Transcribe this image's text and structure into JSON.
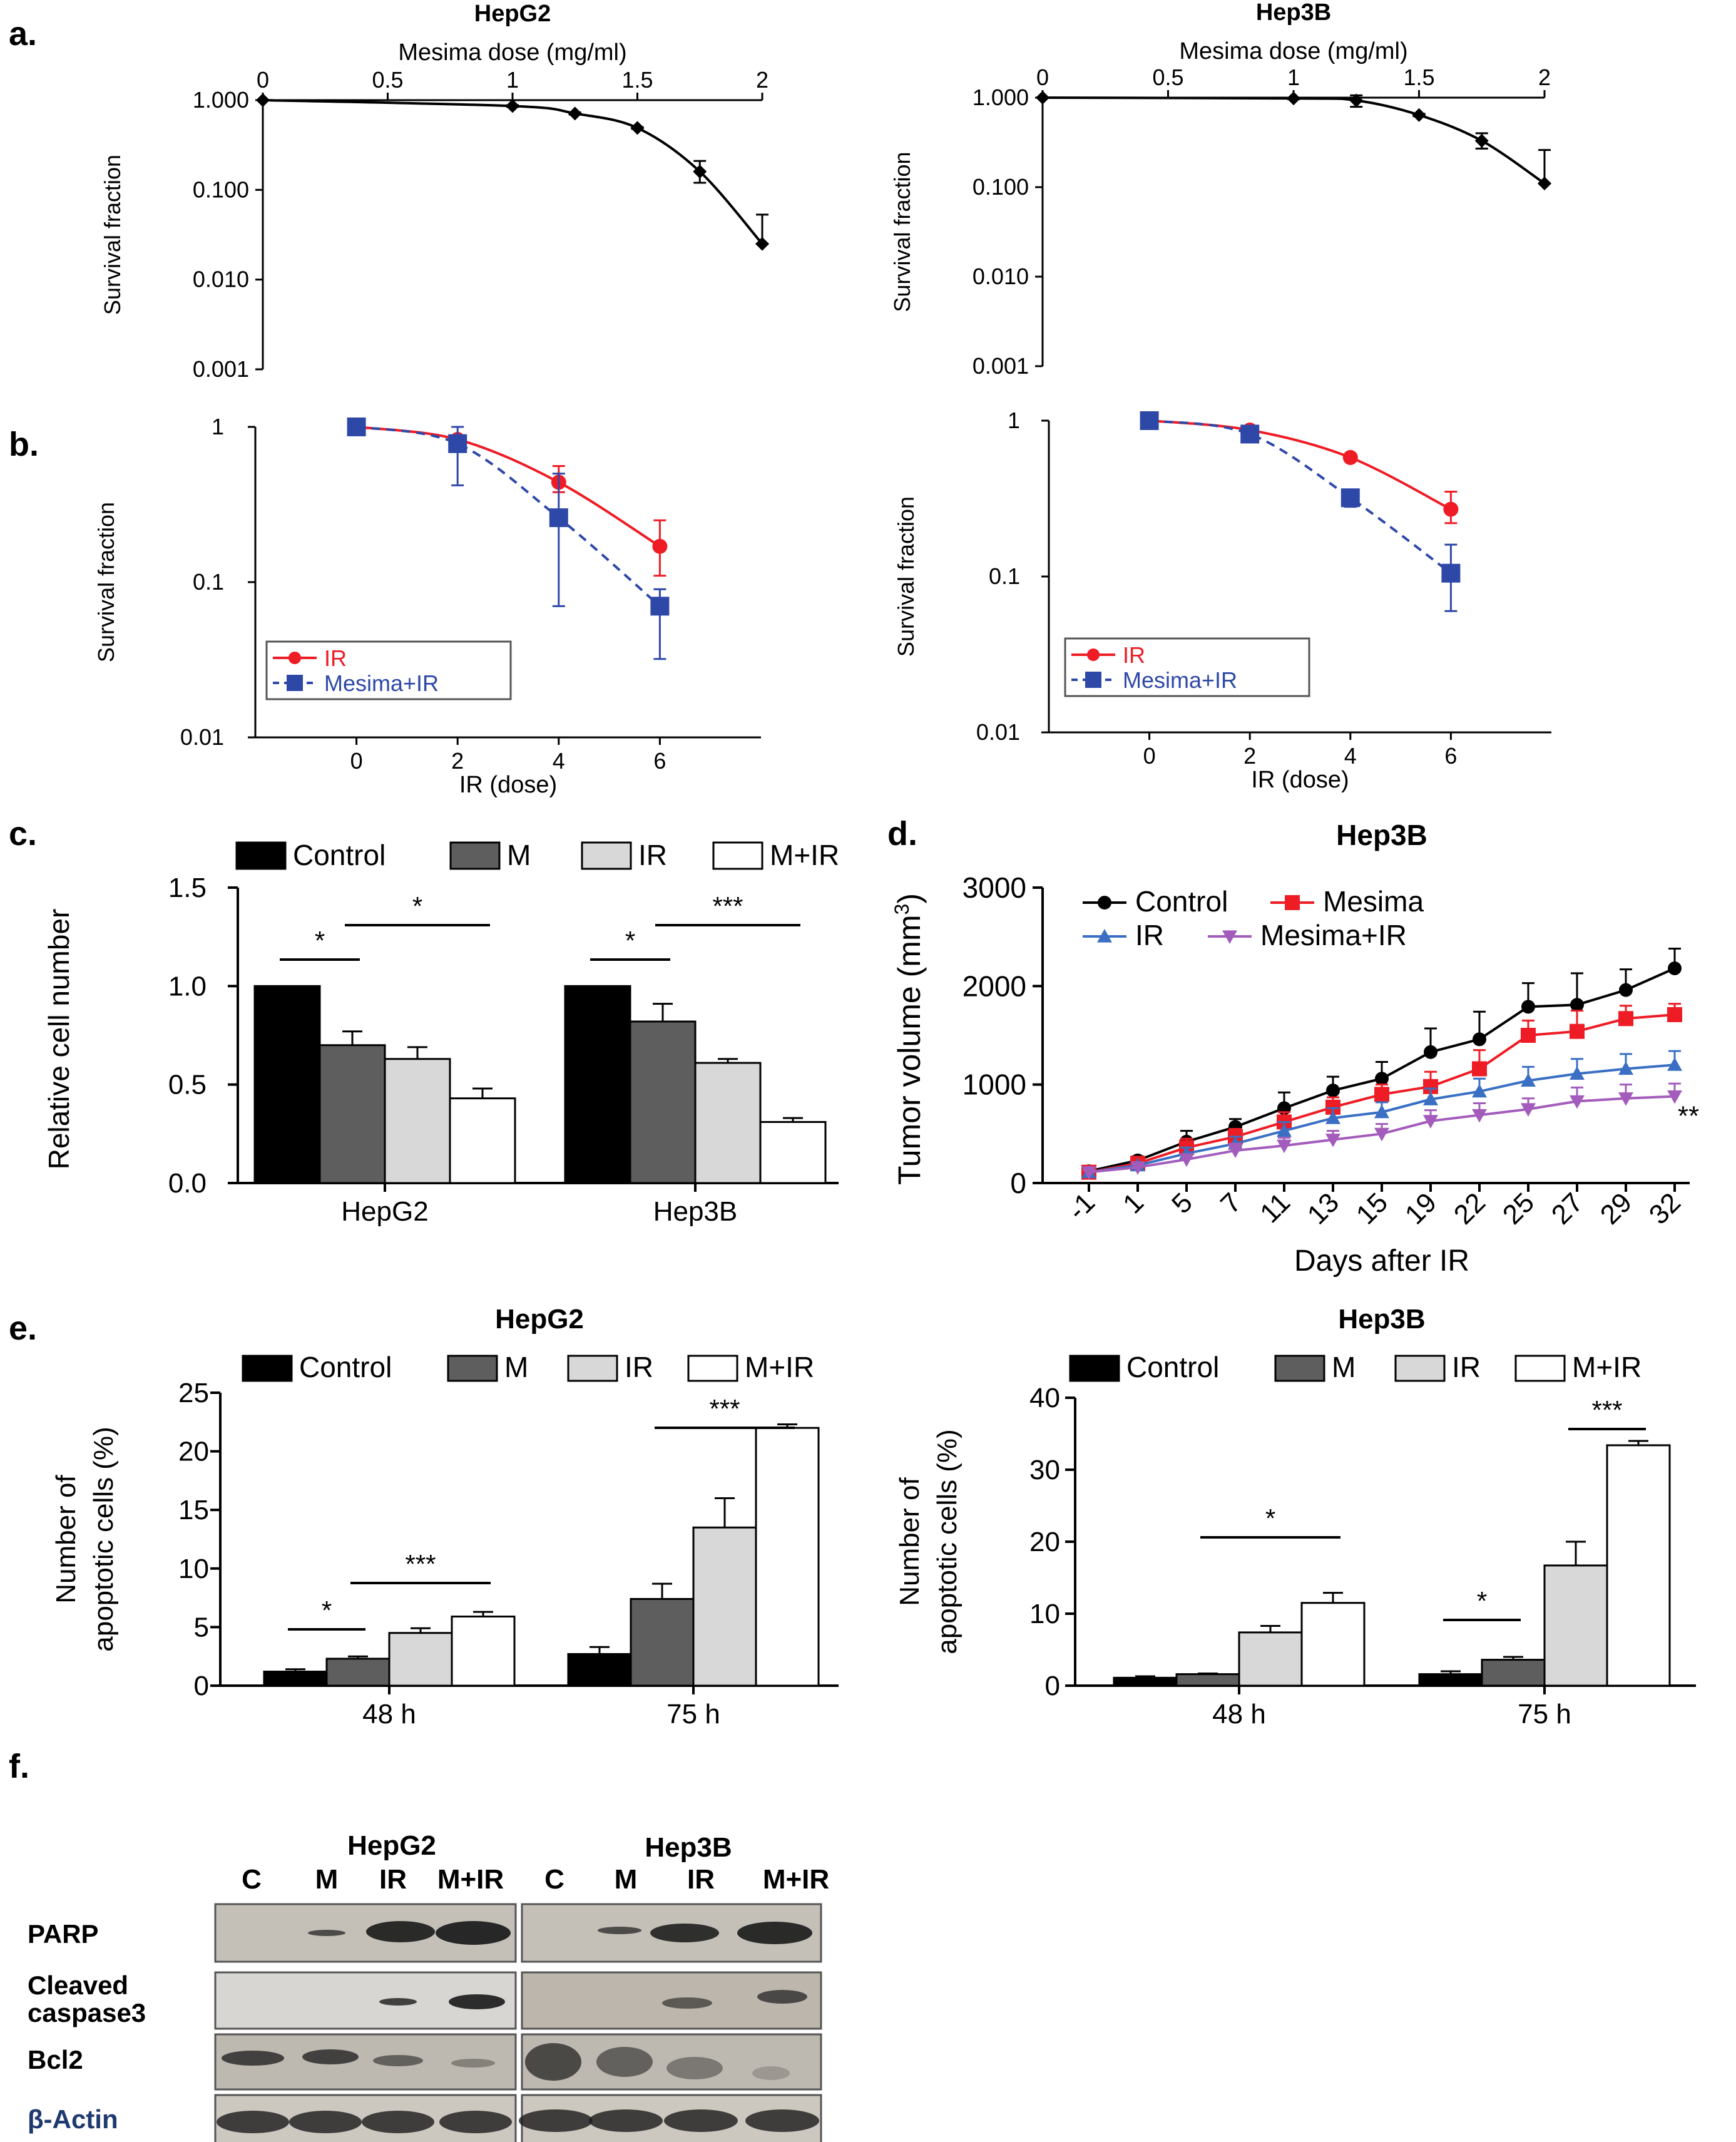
{
  "panel_labels": {
    "a": "a.",
    "b": "b.",
    "c": "c.",
    "d": "d.",
    "e": "e.",
    "f": "f."
  },
  "colors": {
    "black": "#000000",
    "ir_red": "#ee1c25",
    "mesima_blue": "#2e48a8",
    "dark_gray": "#5e5e5e",
    "light_gray": "#d8d8d8",
    "white": "#ffffff",
    "control_black": "#000000",
    "mesima_red": "#ee1c25",
    "ir_blue": "#3a6fc4",
    "combo_purple": "#a35cbb",
    "blot_label_navy": "#1f3a6e"
  },
  "chart_data": [
    {
      "id": "a_hepg2",
      "type": "line",
      "title": "HepG2",
      "xlabel": "Mesima dose (mg/ml)",
      "ylabel": "Survival fraction",
      "yscale": "log",
      "xlim": [
        0,
        2
      ],
      "xticks": [
        0,
        0.5,
        1,
        1.5,
        2
      ],
      "xtick_labels": [
        "0",
        "0.5",
        "1",
        "1.5",
        "2"
      ],
      "ylim": [
        0.001,
        1
      ],
      "yticks": [
        1,
        0.1,
        0.01,
        0.001
      ],
      "ytick_labels": [
        "1.000",
        "0.100",
        "0.010",
        "0.001"
      ],
      "series": [
        {
          "name": "HepG2",
          "x": [
            0,
            1,
            1.25,
            1.5,
            1.75,
            2
          ],
          "y": [
            1.0,
            0.86,
            0.71,
            0.49,
            0.16,
            0.025
          ],
          "err_hi": [
            1.0,
            0.88,
            0.73,
            0.5,
            0.21,
            0.053
          ],
          "err_lo": [
            1.0,
            0.84,
            0.69,
            0.48,
            0.12,
            0.025
          ]
        }
      ]
    },
    {
      "id": "a_hep3b",
      "type": "line",
      "title": "Hep3B",
      "xlabel": "Mesima dose (mg/ml)",
      "ylabel": "Survival fraction",
      "yscale": "log",
      "xlim": [
        0,
        2
      ],
      "xticks": [
        0,
        0.5,
        1,
        1.5,
        2
      ],
      "xtick_labels": [
        "0",
        "0.5",
        "1",
        "1.5",
        "2"
      ],
      "ylim": [
        0.001,
        1
      ],
      "yticks": [
        1,
        0.1,
        0.01,
        0.001
      ],
      "ytick_labels": [
        "1.000",
        "0.100",
        "0.010",
        "0.001"
      ],
      "series": [
        {
          "name": "Hep3B",
          "x": [
            0,
            1,
            1.25,
            1.5,
            1.75,
            2
          ],
          "y": [
            1.0,
            0.98,
            0.93,
            0.64,
            0.33,
            0.11
          ],
          "err_hi": [
            1.0,
            1.0,
            1.06,
            0.66,
            0.4,
            0.26
          ],
          "err_lo": [
            1.0,
            0.96,
            0.79,
            0.62,
            0.27,
            0.11
          ]
        }
      ]
    },
    {
      "id": "b_hepg2",
      "type": "line",
      "xlabel": "IR (dose)",
      "ylabel": "Survival fraction",
      "yscale": "log",
      "xlim": [
        -2,
        8
      ],
      "xticks": [
        0,
        2,
        4,
        6
      ],
      "xtick_labels": [
        "0",
        "2",
        "4",
        "6"
      ],
      "ylim": [
        0.01,
        1
      ],
      "yticks": [
        1,
        0.1,
        0.01
      ],
      "ytick_labels": [
        "1",
        "0.1",
        "0.01"
      ],
      "legend": [
        "IR",
        "Mesima+IR"
      ],
      "series": [
        {
          "name": "IR",
          "x": [
            0,
            2,
            4,
            6
          ],
          "y": [
            1.0,
            0.83,
            0.44,
            0.17
          ],
          "err_hi": [
            1.0,
            0.88,
            0.56,
            0.25
          ],
          "err_lo": [
            1.0,
            0.78,
            0.38,
            0.11
          ]
        },
        {
          "name": "Mesima+IR",
          "x": [
            0,
            2,
            4,
            6
          ],
          "y": [
            1.0,
            0.78,
            0.26,
            0.07
          ],
          "err_hi": [
            1.0,
            1.0,
            0.5,
            0.09
          ],
          "err_lo": [
            1.0,
            0.42,
            0.07,
            0.032
          ]
        }
      ]
    },
    {
      "id": "b_hep3b",
      "type": "line",
      "xlabel": "IR (dose)",
      "ylabel": "Survival fraction",
      "yscale": "log",
      "xlim": [
        -2,
        8
      ],
      "xticks": [
        0,
        2,
        4,
        6
      ],
      "xtick_labels": [
        "0",
        "2",
        "4",
        "6"
      ],
      "ylim": [
        0.01,
        1
      ],
      "yticks": [
        1,
        0.1,
        0.01
      ],
      "ytick_labels": [
        "1",
        "0.1",
        "0.01"
      ],
      "legend": [
        "IR",
        "Mesima+IR"
      ],
      "series": [
        {
          "name": "IR",
          "x": [
            0,
            2,
            4,
            6
          ],
          "y": [
            1.0,
            0.87,
            0.58,
            0.27
          ],
          "err_hi": [
            1.0,
            0.9,
            0.6,
            0.35
          ],
          "err_lo": [
            1.0,
            0.84,
            0.56,
            0.22
          ]
        },
        {
          "name": "Mesima+IR",
          "x": [
            0,
            2,
            4,
            6
          ],
          "y": [
            1.0,
            0.82,
            0.32,
            0.105
          ],
          "err_hi": [
            1.0,
            0.88,
            0.36,
            0.16
          ],
          "err_lo": [
            1.0,
            0.76,
            0.28,
            0.06
          ]
        }
      ]
    },
    {
      "id": "c",
      "type": "bar",
      "ylabel": "Relative cell number",
      "ylim": [
        0,
        1.5
      ],
      "yticks": [
        0,
        0.5,
        1.0,
        1.5
      ],
      "ytick_labels": [
        "0.0",
        "0.5",
        "1.0",
        "1.5"
      ],
      "categories": [
        "HepG2",
        "Hep3B"
      ],
      "legend": [
        "Control",
        "M",
        "IR",
        "M+IR"
      ],
      "series": [
        {
          "name": "Control",
          "values": [
            1.0,
            1.0
          ],
          "err": [
            0,
            0
          ]
        },
        {
          "name": "M",
          "values": [
            0.7,
            0.82
          ],
          "err": [
            0.07,
            0.09
          ]
        },
        {
          "name": "IR",
          "values": [
            0.63,
            0.61
          ],
          "err": [
            0.06,
            0.02
          ]
        },
        {
          "name": "M+IR",
          "values": [
            0.43,
            0.31
          ],
          "err": [
            0.05,
            0.02
          ]
        }
      ],
      "significance": [
        {
          "group": 0,
          "from": 0,
          "to": 1,
          "label": "*"
        },
        {
          "group": 0,
          "from": 1,
          "to": 3,
          "label": "*"
        },
        {
          "group": 1,
          "from": 0,
          "to": 1,
          "label": "*"
        },
        {
          "group": 1,
          "from": 1,
          "to": 3,
          "label": "***"
        }
      ]
    },
    {
      "id": "d",
      "type": "line",
      "title": "Hep3B",
      "xlabel": "Days after IR",
      "ylabel_main": "Tumor volume (mm",
      "ylabel_sup": "3",
      "ylabel_end": ")",
      "ylim": [
        0,
        3000
      ],
      "yticks": [
        0,
        1000,
        2000,
        3000
      ],
      "ytick_labels": [
        "0",
        "1000",
        "2000",
        "3000"
      ],
      "categories": [
        "-1",
        "1",
        "5",
        "7",
        "11",
        "13",
        "15",
        "19",
        "22",
        "25",
        "27",
        "29",
        "32"
      ],
      "annotation": "**",
      "legend": [
        "Control",
        "Mesima",
        "IR",
        "Mesima+IR"
      ],
      "series": [
        {
          "name": "Control",
          "values": [
            120,
            230,
            420,
            570,
            760,
            940,
            1060,
            1330,
            1460,
            1790,
            1810,
            1960,
            2180
          ],
          "err": [
            20,
            40,
            110,
            80,
            160,
            140,
            170,
            240,
            280,
            240,
            320,
            210,
            200
          ]
        },
        {
          "name": "Mesima",
          "values": [
            110,
            200,
            360,
            470,
            620,
            770,
            900,
            980,
            1160,
            1500,
            1540,
            1670,
            1710
          ],
          "err": [
            20,
            40,
            90,
            80,
            100,
            100,
            100,
            150,
            190,
            150,
            210,
            130,
            110
          ]
        },
        {
          "name": "IR",
          "values": [
            110,
            180,
            300,
            400,
            530,
            660,
            720,
            850,
            930,
            1040,
            1110,
            1160,
            1200
          ],
          "err": [
            20,
            30,
            60,
            70,
            90,
            100,
            100,
            110,
            130,
            140,
            150,
            150,
            140
          ]
        },
        {
          "name": "Mesima+IR",
          "values": [
            110,
            160,
            240,
            330,
            380,
            440,
            500,
            630,
            690,
            750,
            830,
            860,
            880
          ],
          "err": [
            20,
            30,
            50,
            70,
            80,
            90,
            100,
            110,
            120,
            110,
            140,
            140,
            130
          ]
        }
      ]
    },
    {
      "id": "e_hepg2",
      "type": "bar",
      "title": "HepG2",
      "ylabel1": "Number of",
      "ylabel2": "apoptotic cells (%)",
      "ylim": [
        0,
        25
      ],
      "yticks": [
        0,
        5,
        10,
        15,
        20,
        25
      ],
      "ytick_labels": [
        "0",
        "5",
        "10",
        "15",
        "20",
        "25"
      ],
      "categories": [
        "48 h",
        "75 h"
      ],
      "legend": [
        "Control",
        "M",
        "IR",
        "M+IR"
      ],
      "series": [
        {
          "name": "Control",
          "values": [
            1.2,
            2.7
          ],
          "err": [
            0.2,
            0.6
          ]
        },
        {
          "name": "M",
          "values": [
            2.3,
            7.4
          ],
          "err": [
            0.2,
            1.3
          ]
        },
        {
          "name": "IR",
          "values": [
            4.5,
            13.5
          ],
          "err": [
            0.4,
            2.5
          ]
        },
        {
          "name": "M+IR",
          "values": [
            5.9,
            22.0
          ],
          "err": [
            0.4,
            0.3
          ]
        }
      ],
      "significance": [
        {
          "group": 0,
          "from": 0,
          "to": 1,
          "label": "*"
        },
        {
          "group": 0,
          "from": 1,
          "to": 3,
          "label": "***"
        },
        {
          "group": 1,
          "from": 1,
          "to": 3,
          "label": "***"
        }
      ]
    },
    {
      "id": "e_hep3b",
      "type": "bar",
      "title": "Hep3B",
      "ylabel1": "Number of",
      "ylabel2": "apoptotic cells (%)",
      "ylim": [
        0,
        40
      ],
      "yticks": [
        0,
        10,
        20,
        30,
        40
      ],
      "ytick_labels": [
        "0",
        "10",
        "20",
        "30",
        "40"
      ],
      "categories": [
        "48 h",
        "75 h"
      ],
      "legend": [
        "Control",
        "M",
        "IR",
        "M+IR"
      ],
      "series": [
        {
          "name": "Control",
          "values": [
            1.1,
            1.6
          ],
          "err": [
            0.2,
            0.4
          ]
        },
        {
          "name": "M",
          "values": [
            1.6,
            3.6
          ],
          "err": [
            0.1,
            0.4
          ]
        },
        {
          "name": "IR",
          "values": [
            7.4,
            16.7
          ],
          "err": [
            0.9,
            3.3
          ]
        },
        {
          "name": "M+IR",
          "values": [
            11.5,
            33.4
          ],
          "err": [
            1.4,
            0.6
          ]
        }
      ],
      "significance": [
        {
          "group": 0,
          "from": 1,
          "to": 3,
          "label": "*"
        },
        {
          "group": 1,
          "from": 0,
          "to": 1,
          "label": "*"
        },
        {
          "group": 1,
          "from": 2,
          "to": 3,
          "label": "***"
        }
      ]
    }
  ],
  "blot": {
    "groups": [
      "HepG2",
      "Hep3B"
    ],
    "lanes_left": [
      "C",
      "M",
      "IR",
      "M+IR"
    ],
    "lanes_right": [
      "C",
      "M",
      "IR",
      "M+IR"
    ],
    "rows": [
      "PARP",
      "Cleaved",
      "caspase3",
      "Bcl2"
    ],
    "actin_label": "β-Actin"
  }
}
